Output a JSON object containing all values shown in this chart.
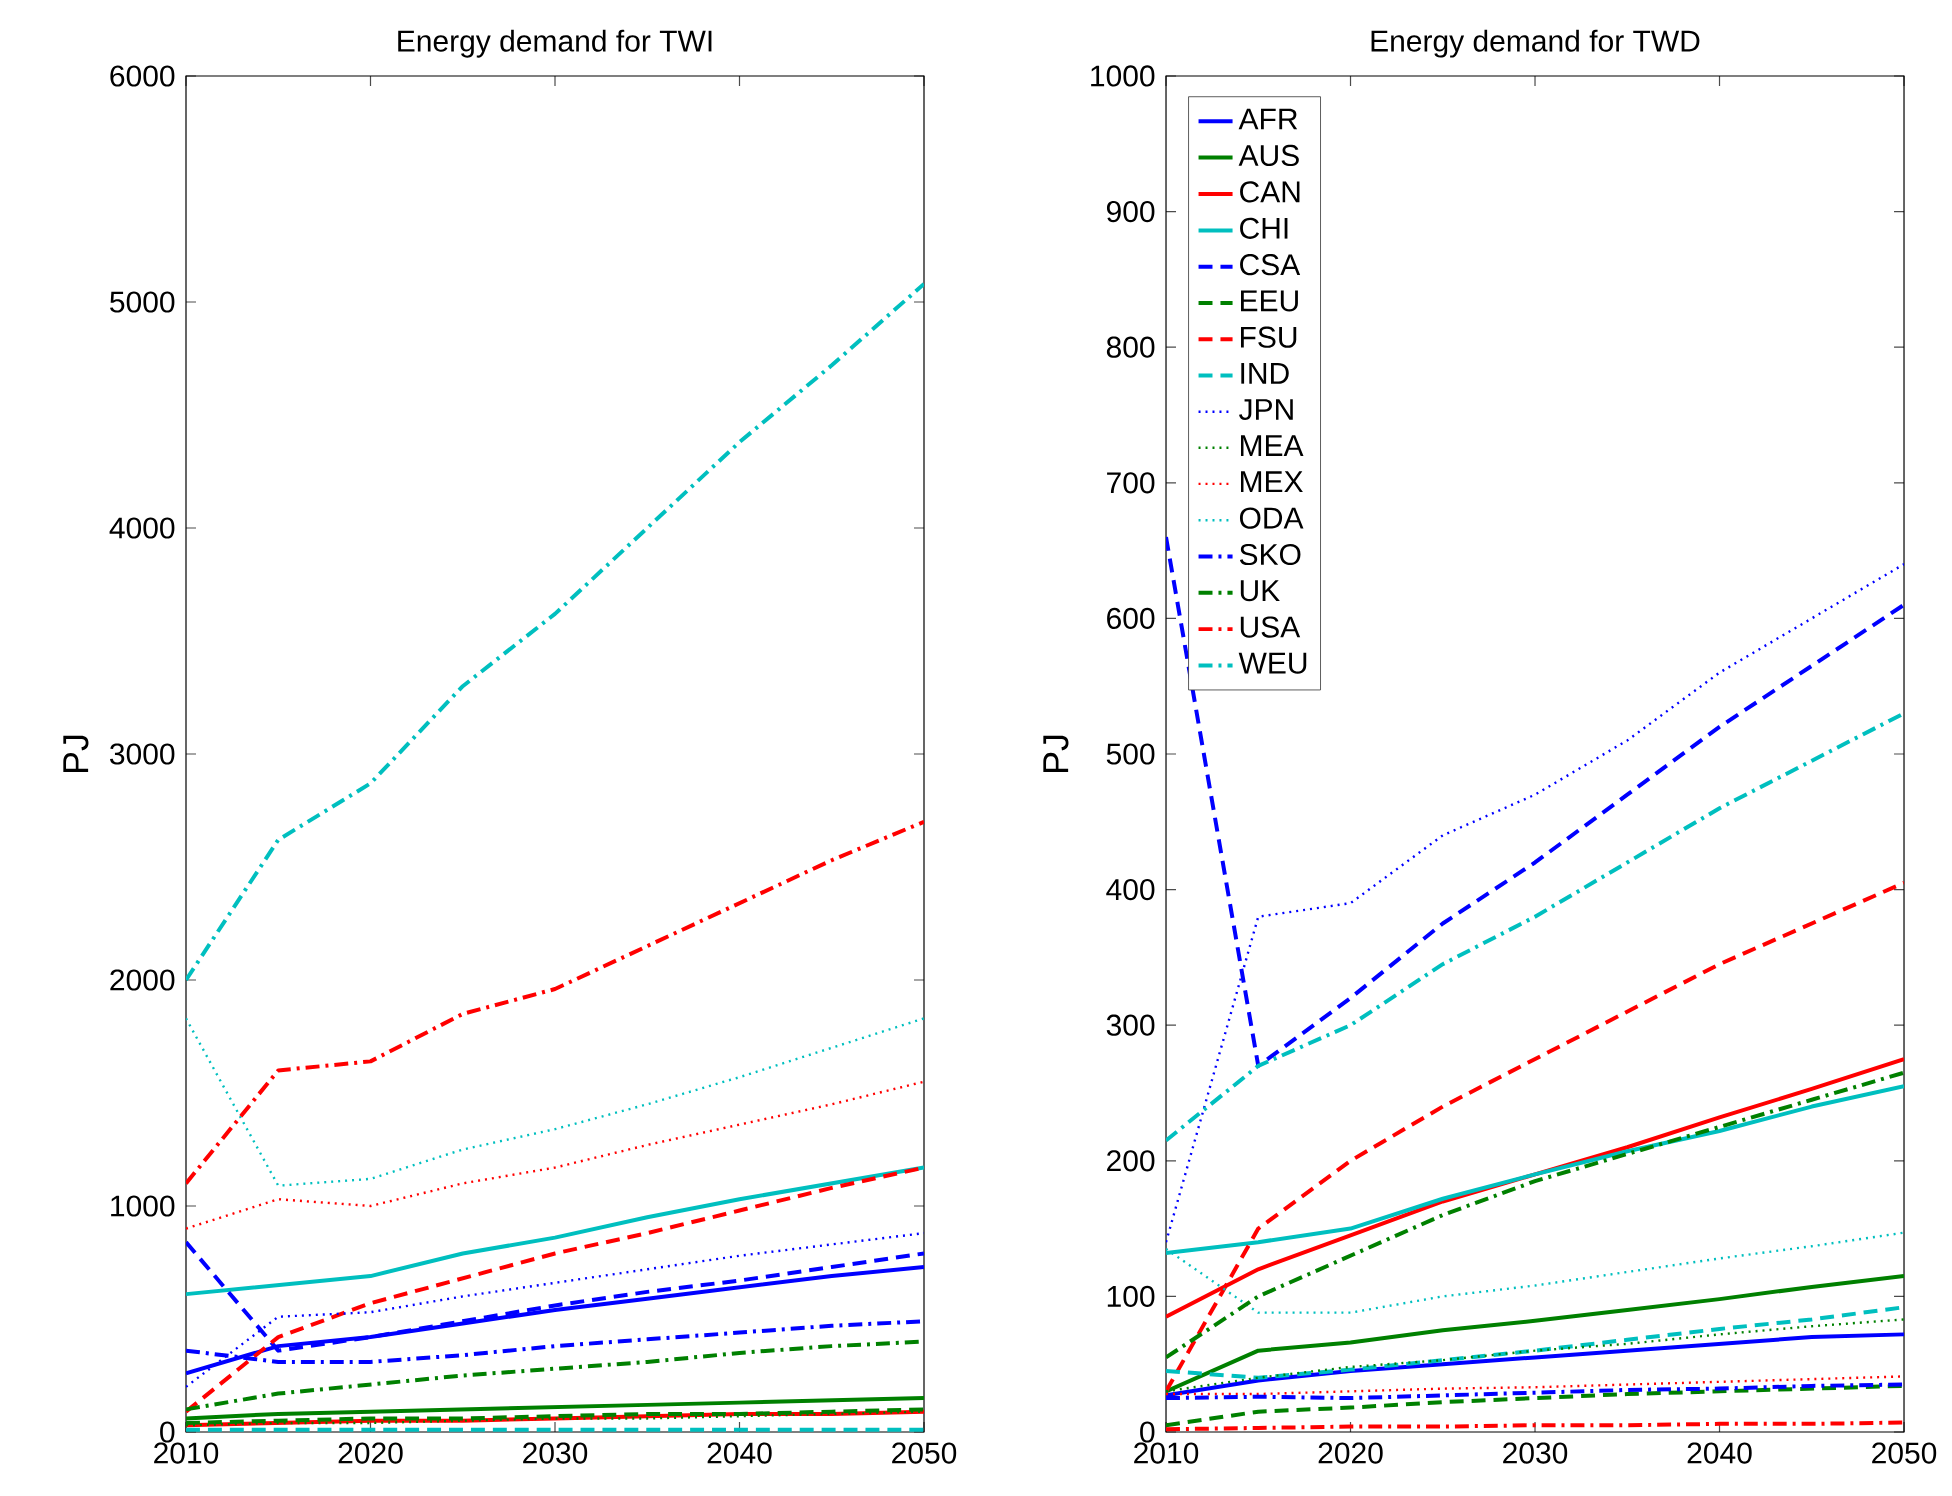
{
  "chart_data": [
    {
      "type": "line",
      "title": "Energy demand for TWI",
      "ylabel": "PJ",
      "x": [
        2010,
        2015,
        2020,
        2025,
        2030,
        2035,
        2040,
        2045,
        2050
      ],
      "xlim": [
        2010,
        2050
      ],
      "ylim": [
        0,
        6000
      ],
      "xticks": [
        2010,
        2020,
        2030,
        2040,
        2050
      ],
      "yticks": [
        0,
        1000,
        2000,
        3000,
        4000,
        5000,
        6000
      ],
      "series": [
        {
          "color": "#0000ff",
          "line_style": "solid",
          "values": [
            260,
            380,
            420,
            480,
            540,
            590,
            640,
            690,
            730
          ]
        },
        {
          "color": "#008000",
          "line_style": "solid",
          "values": [
            60,
            80,
            90,
            100,
            110,
            120,
            130,
            140,
            150
          ]
        },
        {
          "color": "#ff0000",
          "line_style": "solid",
          "values": [
            30,
            40,
            50,
            50,
            60,
            70,
            80,
            80,
            90
          ]
        },
        {
          "color": "#00bfbf",
          "line_style": "solid",
          "values": [
            610,
            650,
            690,
            790,
            860,
            950,
            1030,
            1100,
            1170
          ]
        },
        {
          "color": "#0000ff",
          "line_style": "dashed",
          "values": [
            840,
            360,
            420,
            490,
            560,
            620,
            670,
            730,
            790
          ]
        },
        {
          "color": "#008000",
          "line_style": "dashed",
          "values": [
            40,
            50,
            60,
            60,
            70,
            80,
            80,
            90,
            100
          ]
        },
        {
          "color": "#ff0000",
          "line_style": "dashed",
          "values": [
            90,
            420,
            570,
            680,
            790,
            880,
            980,
            1080,
            1170
          ]
        },
        {
          "color": "#00bfbf",
          "line_style": "dashed",
          "values": [
            10,
            10,
            10,
            10,
            10,
            10,
            10,
            10,
            10
          ]
        },
        {
          "color": "#0000ff",
          "line_style": "dotted",
          "values": [
            200,
            510,
            530,
            600,
            660,
            720,
            780,
            830,
            880
          ]
        },
        {
          "color": "#008000",
          "line_style": "dotted",
          "values": [
            30,
            40,
            40,
            50,
            60,
            60,
            70,
            80,
            90
          ]
        },
        {
          "color": "#ff0000",
          "line_style": "dotted",
          "values": [
            900,
            1030,
            1000,
            1100,
            1170,
            1270,
            1360,
            1450,
            1550
          ]
        },
        {
          "color": "#00bfbf",
          "line_style": "dotted",
          "values": [
            1830,
            1090,
            1120,
            1250,
            1340,
            1450,
            1570,
            1700,
            1830
          ]
        },
        {
          "color": "#0000ff",
          "line_style": "dashdot",
          "values": [
            360,
            310,
            310,
            340,
            380,
            410,
            440,
            470,
            490
          ]
        },
        {
          "color": "#008000",
          "line_style": "dashdot",
          "values": [
            100,
            170,
            210,
            250,
            280,
            310,
            350,
            380,
            400
          ]
        },
        {
          "color": "#ff0000",
          "line_style": "dashdot",
          "values": [
            1100,
            1600,
            1640,
            1850,
            1960,
            2150,
            2340,
            2530,
            2700
          ]
        },
        {
          "color": "#00bfbf",
          "line_style": "dashdot",
          "values": [
            2000,
            2620,
            2870,
            3300,
            3620,
            4000,
            4380,
            4720,
            5080
          ]
        }
      ]
    },
    {
      "type": "line",
      "title": "Energy demand for TWD",
      "ylabel": "PJ",
      "x": [
        2010,
        2015,
        2020,
        2025,
        2030,
        2035,
        2040,
        2045,
        2050
      ],
      "xlim": [
        2010,
        2050
      ],
      "ylim": [
        0,
        1000
      ],
      "xticks": [
        2010,
        2020,
        2030,
        2040,
        2050
      ],
      "yticks": [
        0,
        100,
        200,
        300,
        400,
        500,
        600,
        700,
        800,
        900,
        1000
      ],
      "legend": "top left",
      "series": [
        {
          "name": "AFR",
          "color": "#0000ff",
          "line_style": "solid",
          "values": [
            27,
            38,
            45,
            50,
            55,
            60,
            65,
            70,
            72
          ]
        },
        {
          "name": "AUS",
          "color": "#008000",
          "line_style": "solid",
          "values": [
            30,
            60,
            66,
            75,
            82,
            90,
            98,
            107,
            115
          ]
        },
        {
          "name": "CAN",
          "color": "#ff0000",
          "line_style": "solid",
          "values": [
            85,
            120,
            145,
            170,
            190,
            210,
            232,
            253,
            275
          ]
        },
        {
          "name": "CHI",
          "color": "#00bfbf",
          "line_style": "solid",
          "values": [
            132,
            140,
            150,
            172,
            190,
            207,
            222,
            240,
            255
          ]
        },
        {
          "name": "CSA",
          "color": "#0000ff",
          "line_style": "dashed",
          "values": [
            660,
            270,
            320,
            375,
            420,
            470,
            520,
            565,
            610
          ]
        },
        {
          "name": "EEU",
          "color": "#008000",
          "line_style": "dashed",
          "values": [
            5,
            15,
            18,
            22,
            25,
            28,
            30,
            32,
            34
          ]
        },
        {
          "name": "FSU",
          "color": "#ff0000",
          "line_style": "dashed",
          "values": [
            30,
            150,
            200,
            240,
            275,
            310,
            345,
            375,
            405
          ]
        },
        {
          "name": "IND",
          "color": "#00bfbf",
          "line_style": "dashed",
          "values": [
            45,
            40,
            46,
            53,
            60,
            68,
            76,
            83,
            92
          ]
        },
        {
          "name": "JPN",
          "color": "#0000ff",
          "line_style": "dotted",
          "values": [
            140,
            380,
            390,
            440,
            470,
            510,
            560,
            600,
            640
          ]
        },
        {
          "name": "MEA",
          "color": "#008000",
          "line_style": "dotted",
          "values": [
            30,
            40,
            48,
            53,
            60,
            65,
            72,
            78,
            83
          ]
        },
        {
          "name": "MEX",
          "color": "#ff0000",
          "line_style": "dotted",
          "values": [
            28,
            28,
            30,
            32,
            33,
            35,
            37,
            39,
            41
          ]
        },
        {
          "name": "ODA",
          "color": "#00bfbf",
          "line_style": "dotted",
          "values": [
            135,
            88,
            88,
            100,
            108,
            118,
            128,
            137,
            147
          ]
        },
        {
          "name": "SKO",
          "color": "#0000ff",
          "line_style": "dashdot",
          "values": [
            25,
            26,
            25,
            27,
            29,
            31,
            32,
            34,
            35
          ]
        },
        {
          "name": "UK",
          "color": "#008000",
          "line_style": "dashdot",
          "values": [
            55,
            100,
            130,
            160,
            185,
            205,
            225,
            245,
            265
          ]
        },
        {
          "name": "USA",
          "color": "#ff0000",
          "line_style": "dashdot",
          "values": [
            2,
            3,
            4,
            4,
            5,
            5,
            6,
            6,
            7
          ]
        },
        {
          "name": "WEU",
          "color": "#00bfbf",
          "line_style": "dashdot",
          "values": [
            215,
            270,
            300,
            345,
            380,
            420,
            460,
            495,
            530
          ]
        }
      ]
    }
  ]
}
